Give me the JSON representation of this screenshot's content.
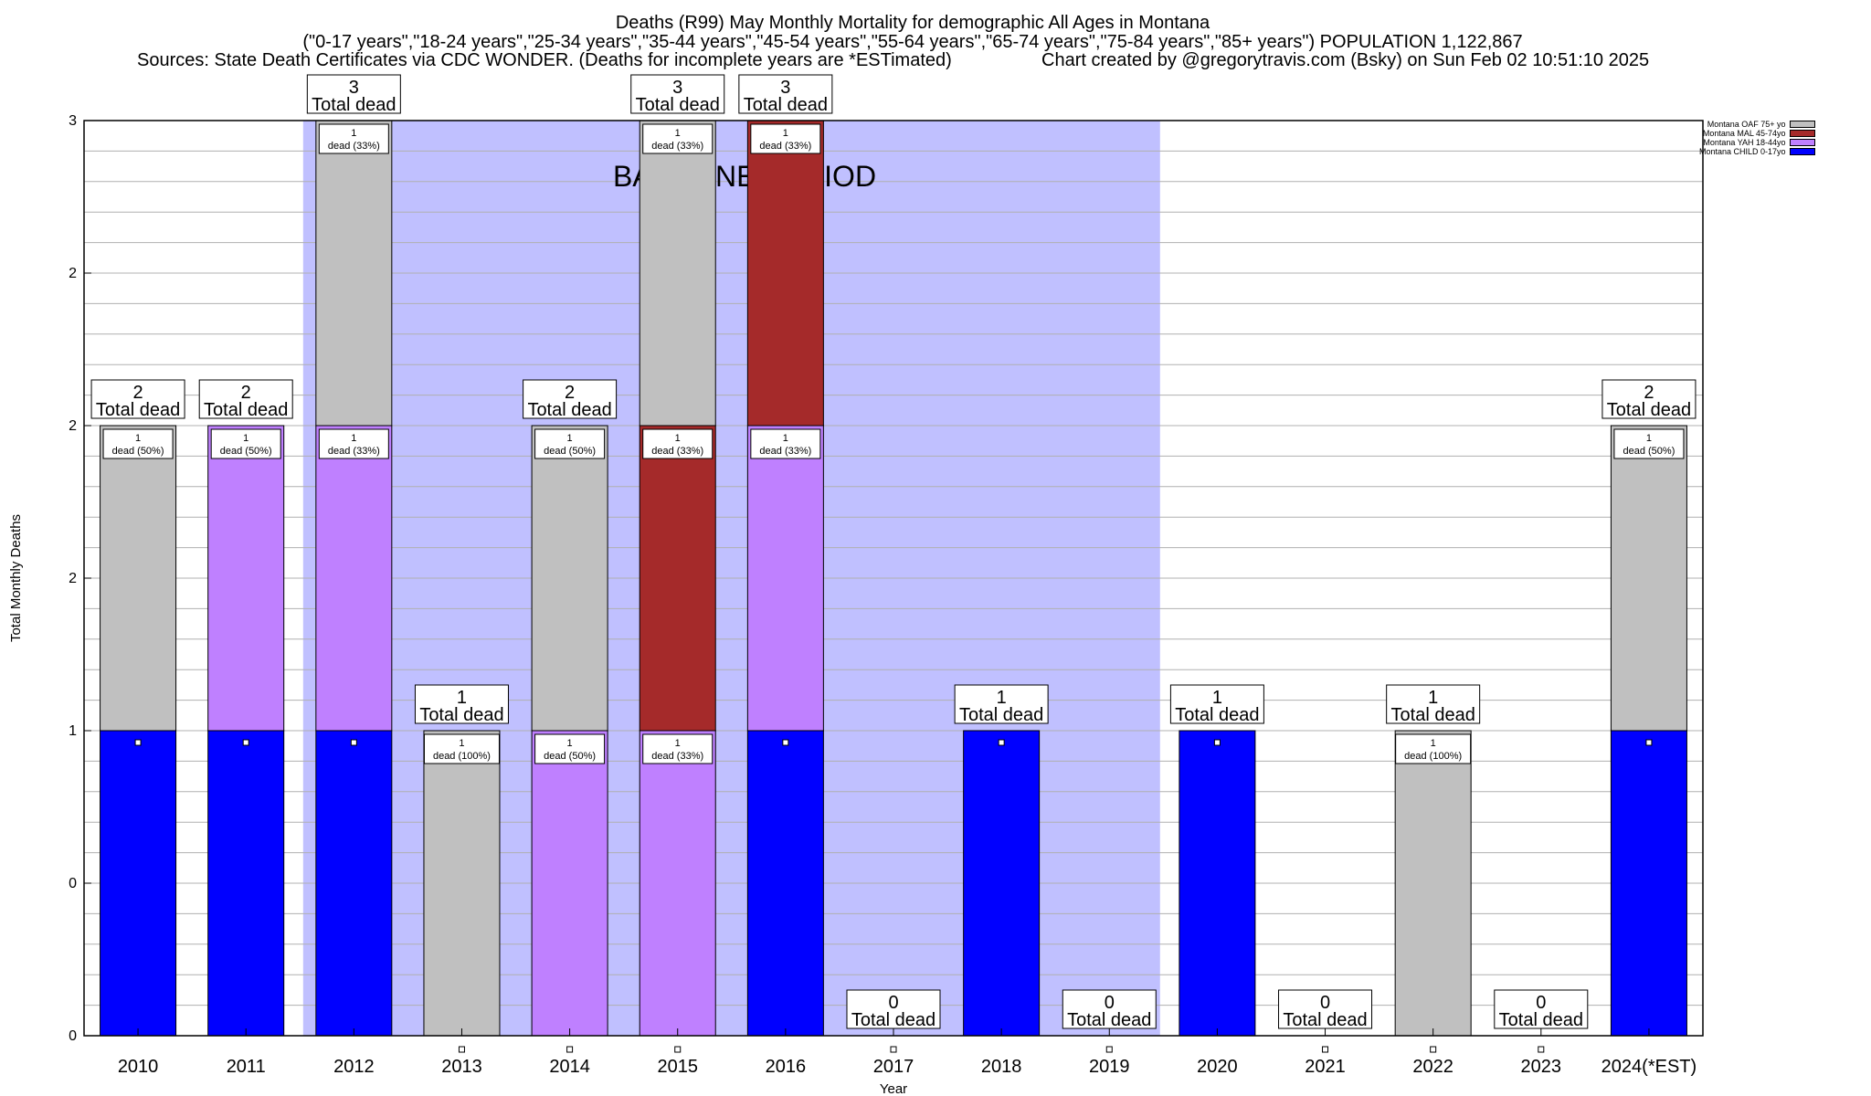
{
  "titles": {
    "line1": "Deaths (R99) May Monthly Mortality for demographic All Ages in Montana",
    "line2": "(\"0-17 years\",\"18-24 years\",\"25-34 years\",\"35-44 years\",\"45-54 years\",\"55-64 years\",\"65-74 years\",\"75-84 years\",\"85+ years\") POPULATION 1,122,867",
    "line3_left": "Sources: State Death Certificates via CDC WONDER. (Deaths for incomplete years are *ESTimated)",
    "line3_right": "Chart created by @gregorytravis.com (Bsky) on Sun Feb 02 10:51:10 2025"
  },
  "chart_data": {
    "type": "bar",
    "stacked": true,
    "xlabel": "Year",
    "ylabel": "Total Monthly Deaths",
    "ylim": [
      0,
      3
    ],
    "ytick_labels": [
      "0",
      "0",
      "1",
      "2",
      "2",
      "2",
      "3"
    ],
    "baseline_label": "BASELINE PERIOD",
    "baseline_range": [
      "2012",
      "2019"
    ],
    "total_label": "Total dead",
    "categories": [
      "2010",
      "2011",
      "2012",
      "2013",
      "2014",
      "2015",
      "2016",
      "2017",
      "2018",
      "2019",
      "2020",
      "2021",
      "2022",
      "2023",
      "2024(*EST)"
    ],
    "totals": [
      2,
      2,
      3,
      1,
      2,
      3,
      3,
      0,
      1,
      0,
      1,
      0,
      1,
      0,
      2
    ],
    "series": [
      {
        "name": "Montana CHILD 0-17yo",
        "color": "#0000ff",
        "values": [
          1,
          1,
          1,
          0,
          0,
          0,
          1,
          0,
          1,
          0,
          1,
          0,
          0,
          0,
          1
        ]
      },
      {
        "name": "Montana YAH 18-44yo",
        "color": "#bf80ff",
        "values": [
          0,
          1,
          1,
          0,
          1,
          1,
          1,
          0,
          0,
          0,
          0,
          0,
          0,
          0,
          0
        ]
      },
      {
        "name": "Montana MAL 45-74yo",
        "color": "#a52a2a",
        "values": [
          0,
          0,
          0,
          0,
          0,
          1,
          1,
          0,
          0,
          0,
          0,
          0,
          0,
          0,
          0
        ]
      },
      {
        "name": "Montana OAF 75+ yo",
        "color": "#c0c0c0",
        "values": [
          1,
          0,
          1,
          1,
          1,
          1,
          0,
          0,
          0,
          0,
          0,
          0,
          1,
          0,
          1
        ]
      }
    ],
    "segment_labels": [
      {
        "year": "2010",
        "value": "1",
        "text": "dead (50%)"
      },
      {
        "year": "2011",
        "value": "1",
        "text": "dead (50%)"
      },
      {
        "year": "2012",
        "value": "1",
        "text": "dead (33%)"
      },
      {
        "year": "2012",
        "value": "1",
        "text": "dead (33%)"
      },
      {
        "year": "2013",
        "value": "1",
        "text": "dead (100%)"
      },
      {
        "year": "2014",
        "value": "1",
        "text": "dead (50%)"
      },
      {
        "year": "2014",
        "value": "1",
        "text": "dead (50%)"
      },
      {
        "year": "2015",
        "value": "1",
        "text": "dead (33%)"
      },
      {
        "year": "2015",
        "value": "1",
        "text": "dead (33%)"
      },
      {
        "year": "2015",
        "value": "1",
        "text": "dead (33%)"
      },
      {
        "year": "2016",
        "value": "1",
        "text": "dead (33%)"
      },
      {
        "year": "2016",
        "value": "1",
        "text": "dead (33%)"
      },
      {
        "year": "2022",
        "value": "1",
        "text": "dead (100%)"
      },
      {
        "year": "2024(*EST)",
        "value": "1",
        "text": "dead (50%)"
      }
    ],
    "legend": [
      {
        "name": "Montana OAF 75+ yo",
        "color": "#c0c0c0"
      },
      {
        "name": "Montana MAL 45-74yo",
        "color": "#a52a2a"
      },
      {
        "name": "Montana YAH 18-44yo",
        "color": "#bf80ff"
      },
      {
        "name": "Montana CHILD 0-17yo",
        "color": "#0000ff"
      }
    ],
    "baseline_color": "#c0c0ff"
  }
}
